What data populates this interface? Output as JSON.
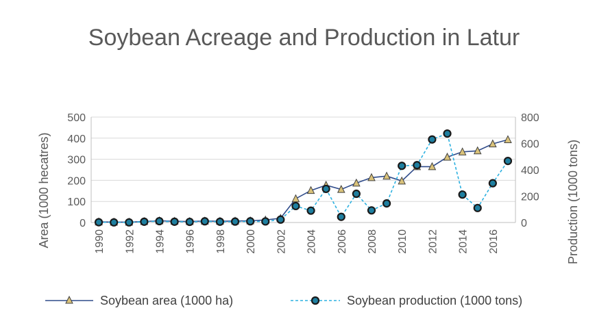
{
  "chart_data": {
    "type": "line",
    "title": "Soybean Acreage and Production in Latur",
    "ylabel": "Area (1000 hecatres)",
    "y2label": "Production (1000 tons)",
    "ylim": [
      0,
      500
    ],
    "y2lim": [
      0,
      800
    ],
    "yticks": [
      "0",
      "100",
      "200",
      "300",
      "400",
      "500"
    ],
    "y2ticks": [
      "0",
      "200",
      "400",
      "600",
      "800"
    ],
    "x": [
      1990,
      1991,
      1992,
      1993,
      1994,
      1995,
      1996,
      1997,
      1998,
      1999,
      2000,
      2001,
      2002,
      2003,
      2004,
      2005,
      2006,
      2007,
      2008,
      2009,
      2010,
      2011,
      2012,
      2013,
      2014,
      2015,
      2016,
      2017
    ],
    "xticks": [
      "1990",
      "1992",
      "1994",
      "1996",
      "1998",
      "2000",
      "2002",
      "2004",
      "2006",
      "2008",
      "2010",
      "2012",
      "2014",
      "2016"
    ],
    "grid": "horizontal",
    "legend_position": "bottom",
    "series": [
      {
        "name": "Soybean area (1000 ha)",
        "axis": "left",
        "color": "#2F4B8A",
        "marker": "triangle",
        "marker_color": "#D9C27A",
        "line_style": "solid",
        "values": [
          3,
          2,
          2,
          5,
          8,
          6,
          5,
          7,
          6,
          7,
          8,
          12,
          20,
          113,
          152,
          177,
          157,
          187,
          213,
          220,
          197,
          265,
          265,
          310,
          335,
          340,
          373,
          393
        ]
      },
      {
        "name": "Soybean production (1000 tons)",
        "axis": "right",
        "color": "#2BB0E0",
        "marker": "circle",
        "marker_color": "#1E7FA0",
        "line_style": "dashed",
        "values": [
          2,
          1,
          1,
          6,
          10,
          6,
          5,
          9,
          6,
          7,
          9,
          8,
          22,
          125,
          90,
          255,
          43,
          218,
          92,
          145,
          430,
          435,
          630,
          675,
          212,
          110,
          298,
          467
        ]
      }
    ]
  }
}
